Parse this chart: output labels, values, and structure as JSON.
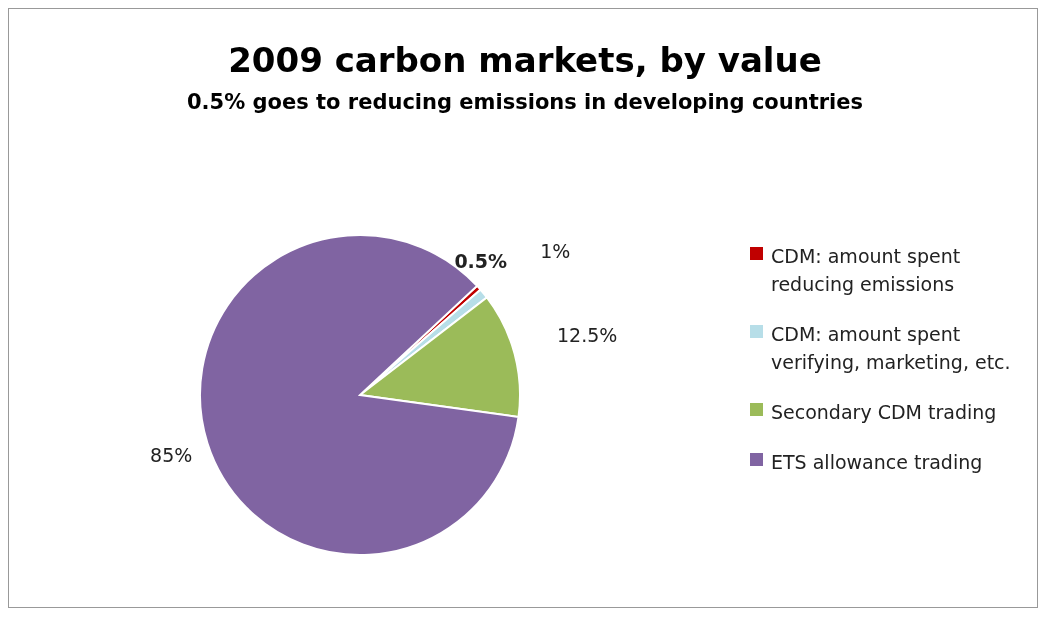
{
  "chart_data": {
    "type": "pie",
    "title": "2009 carbon markets, by value",
    "subtitle": "0.5% goes to reducing emissions in developing countries",
    "categories": [
      "CDM: amount spent reducing emissions",
      "CDM: amount spent verifying, marketing, etc.",
      "Secondary CDM trading",
      "ETS allowance trading"
    ],
    "values": [
      0.5,
      1,
      12.5,
      85
    ],
    "colors": [
      "#c00000",
      "#b7dee8",
      "#9bbb59",
      "#8064a2"
    ],
    "value_labels": [
      "0.5%",
      "1%",
      "12.5%",
      "85%"
    ],
    "legend": "right"
  }
}
